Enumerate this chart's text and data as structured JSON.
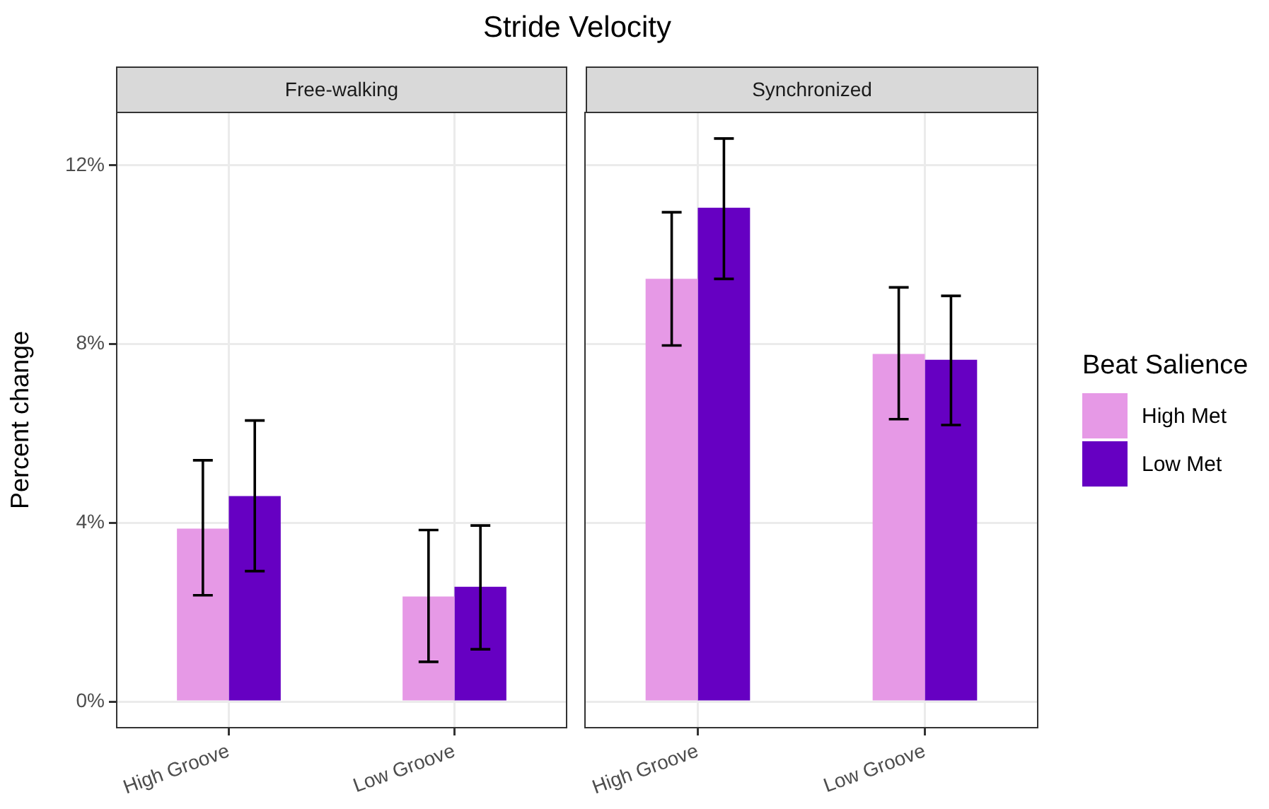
{
  "chart_data": [
    {
      "type": "bar",
      "title": "Stride Velocity",
      "subtitle": "Free-walking",
      "ylabel": "Percent change",
      "categories": [
        "High Groove",
        "Low Groove"
      ],
      "series": [
        {
          "color": "#e699e6",
          "values": [
            3.87,
            2.35
          ],
          "errors": [
            [
              2.38,
              5.4
            ],
            [
              0.89,
              3.84
            ]
          ]
        },
        {
          "color": "#6600c2",
          "values": [
            4.6,
            2.57
          ],
          "errors": [
            [
              2.92,
              6.29
            ],
            [
              1.17,
              3.94
            ]
          ]
        }
      ],
      "ylim": [
        -0.6,
        13.2
      ],
      "yticks": [
        {
          "value": 0,
          "label": "0%"
        },
        {
          "value": 4,
          "label": "4%"
        },
        {
          "value": 8,
          "label": "8%"
        },
        {
          "value": 12,
          "label": "12%"
        }
      ],
      "grid": true
    },
    {
      "type": "bar",
      "subtitle": "Synchronized",
      "legend_title": "Beat Salience",
      "legend": "right",
      "tick_labels": "x",
      "categories": [
        "High Groove",
        "Low Groove"
      ],
      "series": [
        {
          "name": "High Met",
          "color": "#e699e6",
          "values": [
            9.46,
            7.78
          ],
          "errors": [
            [
              7.97,
              10.95
            ],
            [
              6.32,
              9.27
            ]
          ]
        },
        {
          "name": "Low Met",
          "color": "#6600c2",
          "values": [
            11.05,
            7.65
          ],
          "errors": [
            [
              9.46,
              12.6
            ],
            [
              6.19,
              9.08
            ]
          ]
        }
      ],
      "ylim": [
        -0.6,
        13.2
      ],
      "yticks": [
        {
          "value": 0,
          "label": null
        },
        {
          "value": 4,
          "label": null
        },
        {
          "value": 8,
          "label": null
        },
        {
          "value": 12,
          "label": null
        }
      ],
      "grid": true
    }
  ]
}
